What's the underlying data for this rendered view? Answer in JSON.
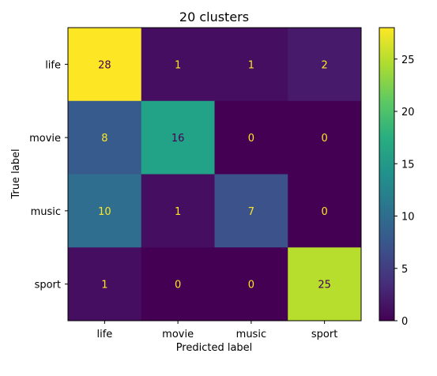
{
  "chart_data": {
    "type": "heatmap",
    "title": "20 clusters",
    "xlabel": "Predicted label",
    "ylabel": "True label",
    "x_categories": [
      "life",
      "movie",
      "music",
      "sport"
    ],
    "y_categories": [
      "life",
      "movie",
      "music",
      "sport"
    ],
    "matrix": [
      [
        28,
        1,
        1,
        2
      ],
      [
        8,
        16,
        0,
        0
      ],
      [
        10,
        1,
        7,
        0
      ],
      [
        1,
        0,
        0,
        25
      ]
    ],
    "colormap": "viridis",
    "colorbar": {
      "vmin": 0,
      "vmax": 28,
      "ticks": [
        0,
        5,
        10,
        15,
        20,
        25
      ]
    },
    "cell_text_colors": {
      "on_dark": "#fde725",
      "on_light": "#440154"
    }
  }
}
